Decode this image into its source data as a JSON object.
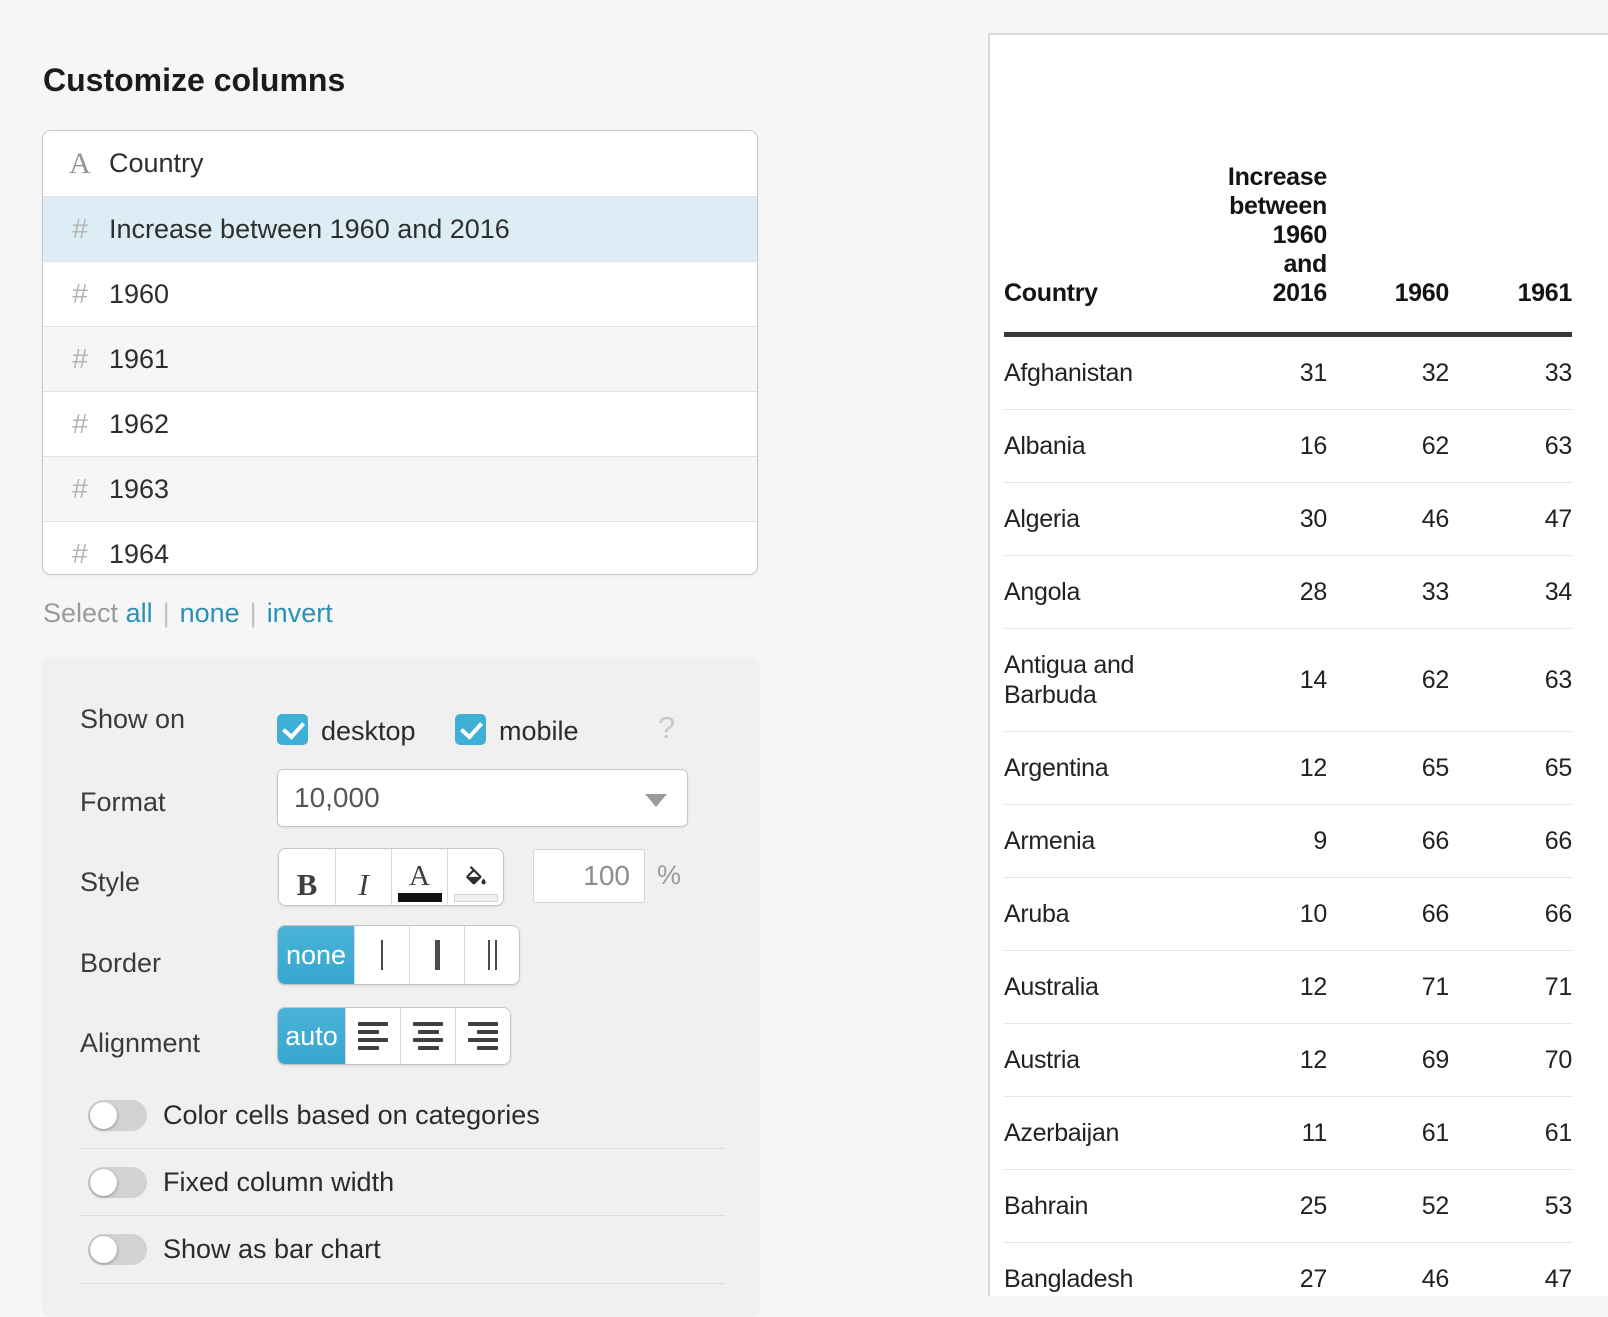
{
  "title": "Customize columns",
  "column_list": {
    "text_icon": "A",
    "number_icon": "#",
    "items": [
      {
        "label": "Country",
        "type": "text",
        "selected": false
      },
      {
        "label": "Increase between 1960 and 2016",
        "type": "number",
        "selected": true
      },
      {
        "label": "1960",
        "type": "number",
        "selected": false
      },
      {
        "label": "1961",
        "type": "number",
        "selected": false
      },
      {
        "label": "1962",
        "type": "number",
        "selected": false
      },
      {
        "label": "1963",
        "type": "number",
        "selected": false
      },
      {
        "label": "1964",
        "type": "number",
        "selected": false
      }
    ]
  },
  "select_links": {
    "prefix": "Select",
    "separator": "|",
    "links": [
      "all",
      "none",
      "invert"
    ]
  },
  "settings": {
    "show_on": {
      "label": "Show on",
      "options": [
        {
          "label": "desktop",
          "checked": true
        },
        {
          "label": "mobile",
          "checked": true
        }
      ],
      "help": "?"
    },
    "format": {
      "label": "Format",
      "value": "10,000"
    },
    "style": {
      "label": "Style",
      "bold": "B",
      "italic": "I",
      "text_color": "A",
      "opacity": "100",
      "unit": "%"
    },
    "border": {
      "label": "Border",
      "none_label": "none",
      "selected": "none",
      "options": [
        "none",
        "thin",
        "thick",
        "double"
      ]
    },
    "alignment": {
      "label": "Alignment",
      "auto_label": "auto",
      "selected": "auto",
      "options": [
        "auto",
        "left",
        "center",
        "right"
      ]
    },
    "toggles": [
      {
        "label": "Color cells based on categories",
        "on": false
      },
      {
        "label": "Fixed column width",
        "on": false
      },
      {
        "label": "Show as bar chart",
        "on": false
      }
    ]
  },
  "preview_table": {
    "headers": [
      "Country",
      "Increase between 1960 and 2016",
      "1960",
      "1961"
    ],
    "rows": [
      [
        "Afghanistan",
        31,
        32,
        33
      ],
      [
        "Albania",
        16,
        62,
        63
      ],
      [
        "Algeria",
        30,
        46,
        47
      ],
      [
        "Angola",
        28,
        33,
        34
      ],
      [
        "Antigua and Barbuda",
        14,
        62,
        63
      ],
      [
        "Argentina",
        12,
        65,
        65
      ],
      [
        "Armenia",
        9,
        66,
        66
      ],
      [
        "Aruba",
        10,
        66,
        66
      ],
      [
        "Australia",
        12,
        71,
        71
      ],
      [
        "Austria",
        12,
        69,
        70
      ],
      [
        "Azerbaijan",
        11,
        61,
        61
      ],
      [
        "Bahrain",
        25,
        52,
        53
      ],
      [
        "Bangladesh",
        27,
        46,
        47
      ]
    ]
  },
  "colors": {
    "accent": "#3fafd5",
    "selected_row": "#ddedf6",
    "link": "#2a90b8",
    "header_rule": "#3a3a3a"
  }
}
